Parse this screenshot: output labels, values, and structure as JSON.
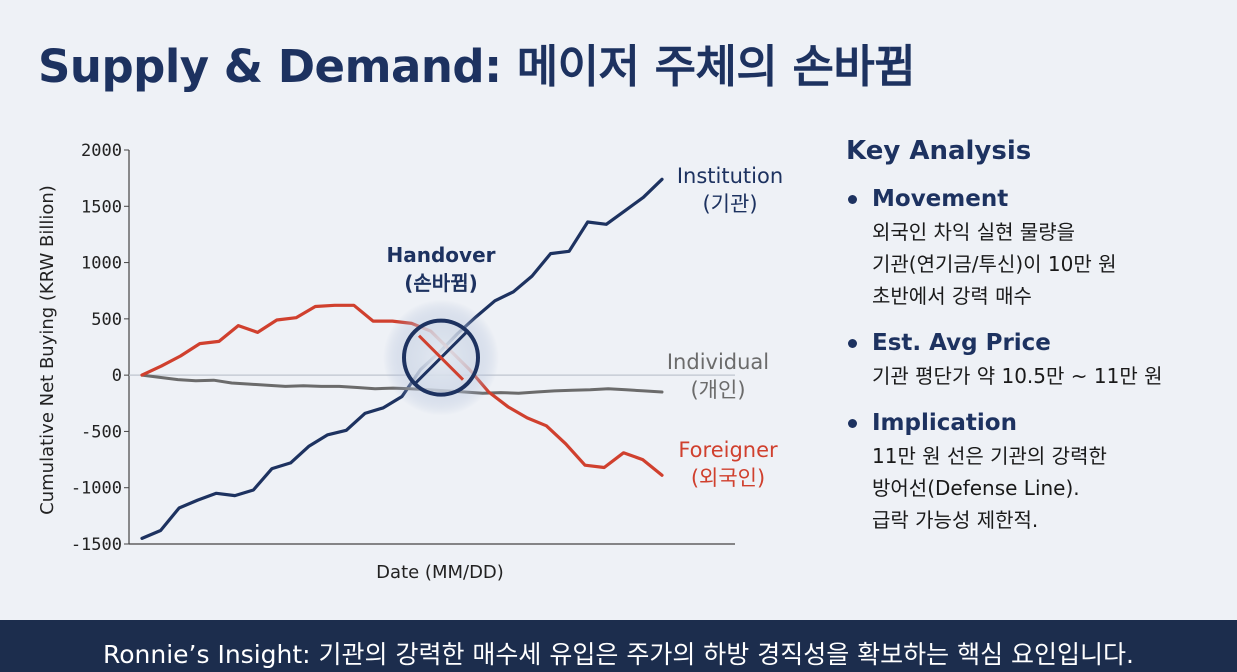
{
  "title": "Supply & Demand: 메이저 주체의 손바뀜",
  "chart_data": {
    "type": "line",
    "xlabel": "Date (MM/DD)",
    "ylabel": "Cumulative Net Buying (KRW Billion)",
    "ylim": [
      -1500,
      2000
    ],
    "yticks": [
      2000,
      1500,
      1000,
      500,
      0,
      -500,
      -1000,
      -1500
    ],
    "yticks_text": [
      "2000",
      "1500",
      "1000",
      "500",
      "0",
      "-500",
      "-1000",
      "-1500"
    ],
    "x_count": 40,
    "series": [
      {
        "name_line1": "Institution",
        "name_line2": "(기관)",
        "color": "#1d3260",
        "values": [
          -1450,
          -1380,
          -1180,
          -1110,
          -1050,
          -1070,
          -1020,
          -830,
          -780,
          -630,
          -530,
          -490,
          -340,
          -290,
          -190,
          50,
          200,
          370,
          520,
          660,
          740,
          880,
          1080,
          1100,
          1360,
          1340,
          1460,
          1580,
          1740
        ]
      },
      {
        "name_line1": "Individual",
        "name_line2": "(개인)",
        "color": "#6b6b6b",
        "values": [
          0,
          -20,
          -40,
          -50,
          -45,
          -70,
          -80,
          -90,
          -100,
          -95,
          -100,
          -100,
          -110,
          -120,
          -115,
          -120,
          -130,
          -140,
          -150,
          -160,
          -155,
          -160,
          -150,
          -140,
          -135,
          -130,
          -120,
          -130,
          -140,
          -150
        ]
      },
      {
        "name_line1": "Foreigner",
        "name_line2": "(외국인)",
        "color": "#d0402e",
        "values": [
          0,
          80,
          170,
          280,
          300,
          440,
          380,
          490,
          510,
          610,
          620,
          620,
          480,
          480,
          460,
          390,
          220,
          50,
          -150,
          -280,
          -380,
          -450,
          -610,
          -800,
          -820,
          -690,
          -750,
          -890
        ]
      }
    ],
    "annotation": {
      "label_line1": "Handover",
      "label_line2": "(손바뀜)",
      "x_index": 16,
      "y": 200
    },
    "grid": false
  },
  "key_analysis": {
    "heading": "Key Analysis",
    "items": [
      {
        "title": "Movement",
        "lines": [
          "외국인 차익 실현 물량을",
          "기관(연기금/투신)이 10만 원",
          "초반에서 강력 매수"
        ]
      },
      {
        "title": "Est. Avg Price",
        "lines": [
          "기관 평단가 약 10.5만 ~ 11만 원"
        ]
      },
      {
        "title": "Implication",
        "lines": [
          "11만 원 선은 기관의 강력한",
          "방어선(Defense Line).",
          "급락 가능성 제한적."
        ]
      }
    ]
  },
  "footer": {
    "text": "Ronnie’s Insight: 기관의 강력한 매수세 유입은 주가의 하방 경직성을 확보하는 핵심 요인입니다."
  }
}
